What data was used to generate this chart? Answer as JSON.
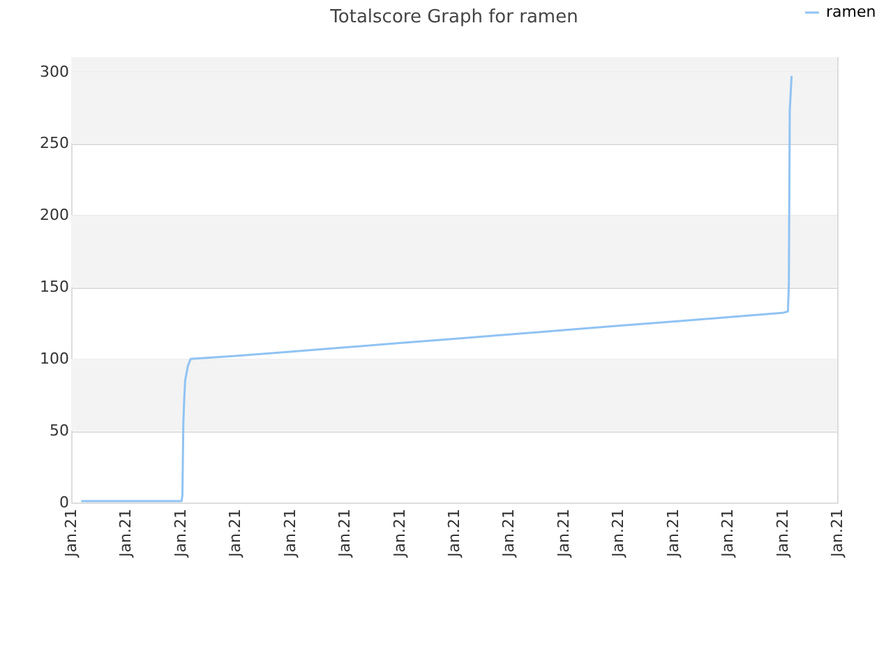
{
  "chart_data": {
    "type": "line",
    "title": "Totalscore Graph for ramen",
    "x": [
      "--01-21T08:11",
      "--01-21T10:01",
      "--01-21T10:02",
      "--01-21T10:03",
      "--01-21T10:04",
      "--01-21T10:05",
      "--01-21T10:08",
      "--01-21T10:11",
      "--01-21T11:00",
      "--01-21T12:00",
      "--01-21T13:00",
      "--01-21T14:00",
      "--01-21T15:00",
      "--01-21T16:00",
      "--01-21T17:00",
      "--01-21T18:00",
      "--01-21T19:00",
      "--01-21T20:00",
      "--01-21T21:00",
      "--01-21T21:06",
      "--01-21T21:07",
      "--01-21T21:08",
      "--01-21T21:10"
    ],
    "series": [
      {
        "name": "ramen",
        "color": "#90c3f3",
        "values": [
          1,
          1,
          5,
          55,
          72,
          85,
          95,
          100,
          102,
          105,
          108,
          111,
          114,
          117,
          120,
          123,
          126,
          129,
          132,
          133,
          152,
          273,
          297
        ]
      }
    ],
    "xlim": [
      "--01-21T08:00",
      "--01-21T22:00"
    ],
    "xticks": [
      {
        "value": "--01-21T08:00",
        "label": "Jan.21"
      },
      {
        "value": "--01-21T09:00",
        "label": "Jan.21"
      },
      {
        "value": "--01-21T10:00",
        "label": "Jan.21"
      },
      {
        "value": "--01-21T11:00",
        "label": "Jan.21"
      },
      {
        "value": "--01-21T12:00",
        "label": "Jan.21"
      },
      {
        "value": "--01-21T13:00",
        "label": "Jan.21"
      },
      {
        "value": "--01-21T14:00",
        "label": "Jan.21"
      },
      {
        "value": "--01-21T15:00",
        "label": "Jan.21"
      },
      {
        "value": "--01-21T16:00",
        "label": "Jan.21"
      },
      {
        "value": "--01-21T17:00",
        "label": "Jan.21"
      },
      {
        "value": "--01-21T18:00",
        "label": "Jan.21"
      },
      {
        "value": "--01-21T19:00",
        "label": "Jan.21"
      },
      {
        "value": "--01-21T20:00",
        "label": "Jan.21"
      },
      {
        "value": "--01-21T21:00",
        "label": "Jan.21"
      },
      {
        "value": "--01-21T22:00",
        "label": "Jan.21"
      }
    ],
    "ylim": [
      0,
      310
    ],
    "yticks": [
      0,
      50,
      100,
      150,
      200,
      250,
      300
    ],
    "grid": "y",
    "legend": "top right",
    "marker": "none",
    "line_style": "solid"
  }
}
